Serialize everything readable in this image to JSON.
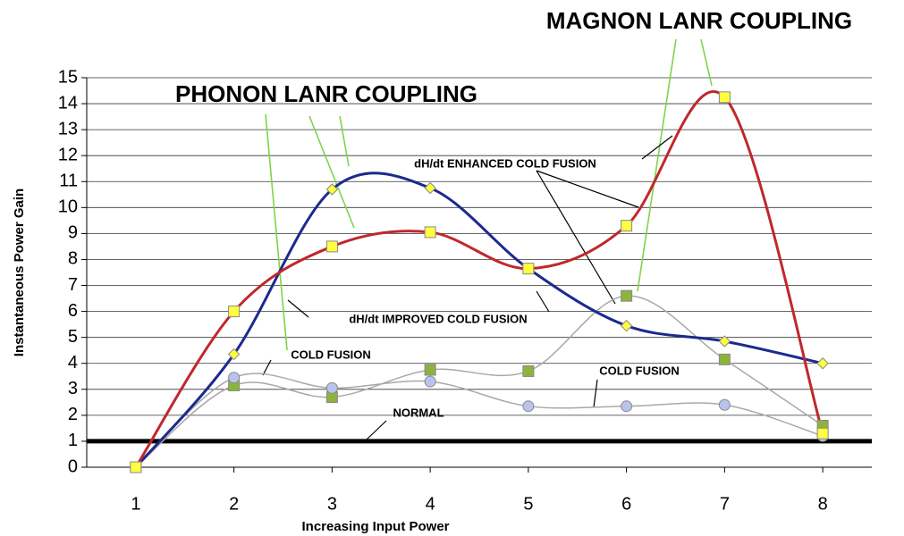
{
  "chart_data": {
    "type": "line",
    "title": "MAGNON LANR COUPLING",
    "subtitle": "PHONON LANR COUPLING",
    "x_label": "Increasing Input Power",
    "y_label": "Instantaneous Power Gain",
    "x": [
      1,
      2,
      3,
      4,
      5,
      6,
      7,
      8
    ],
    "xlim": [
      0.5,
      8.5
    ],
    "xticks": [
      1,
      2,
      3,
      4,
      5,
      6,
      7,
      8
    ],
    "ylim": [
      0,
      15
    ],
    "yticks": [
      0,
      1,
      2,
      3,
      4,
      5,
      6,
      7,
      8,
      9,
      10,
      11,
      12,
      13,
      14,
      15
    ],
    "grid": true,
    "smooth": true,
    "series": [
      {
        "name": "dH/dt ENHANCED COLD FUSION",
        "color": "#c0282d",
        "marker": "square",
        "marker_color": "#ffff40",
        "values": [
          0,
          6.0,
          8.5,
          9.05,
          7.65,
          9.3,
          14.25,
          1.3
        ]
      },
      {
        "name": "dH/dt IMPROVED COLD FUSION",
        "color": "#1c2a8e",
        "marker": "diamond",
        "marker_color": "#ffff40",
        "values": [
          0,
          4.35,
          10.7,
          10.75,
          7.65,
          5.45,
          4.85,
          4.0
        ]
      },
      {
        "name": "COLD FUSION",
        "color": "#a8a8a8",
        "marker": "square",
        "marker_color": "#8cb43c",
        "values": [
          0,
          3.15,
          2.7,
          3.75,
          3.7,
          6.6,
          4.15,
          1.6
        ]
      },
      {
        "name": "COLD FUSION",
        "color": "#a8a8a8",
        "marker": "circle",
        "marker_color": "#b8c4ee",
        "values": [
          0,
          3.45,
          3.05,
          3.3,
          2.35,
          2.35,
          2.4,
          1.2
        ]
      }
    ],
    "reference_lines": [
      {
        "name": "NORMAL",
        "value": 1,
        "color": "#000000"
      }
    ]
  }
}
